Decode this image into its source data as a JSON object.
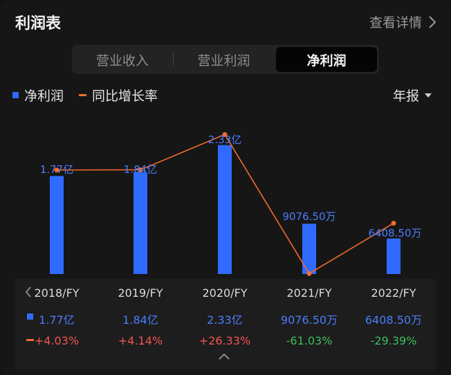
{
  "header": {
    "title": "利润表",
    "more": "查看详情"
  },
  "tabs": [
    "营业收入",
    "营业利润",
    "净利润"
  ],
  "active_tab": 2,
  "legend": {
    "bar": "净利润",
    "line": "同比增长率"
  },
  "period": "年报",
  "colors": {
    "bar": "#2f6bff",
    "line": "#f26b2e",
    "positive": "#f0554f",
    "negative": "#3fbf5a"
  },
  "chart_data": {
    "type": "bar",
    "categories": [
      "2018/FY",
      "2019/FY",
      "2020/FY",
      "2021/FY",
      "2022/FY"
    ],
    "series": [
      {
        "name": "净利润",
        "unit": "亿",
        "values": [
          1.77,
          1.84,
          2.33,
          0.90765,
          0.64085
        ],
        "labels": [
          "1.77亿",
          "1.84亿",
          "2.33亿",
          "9076.50万",
          "6408.50万"
        ]
      },
      {
        "name": "同比增长率",
        "unit": "%",
        "values": [
          4.03,
          4.14,
          26.33,
          -61.03,
          -29.39
        ],
        "labels": [
          "+4.03%",
          "+4.14%",
          "+26.33%",
          "-61.03%",
          "-29.39%"
        ]
      }
    ]
  }
}
